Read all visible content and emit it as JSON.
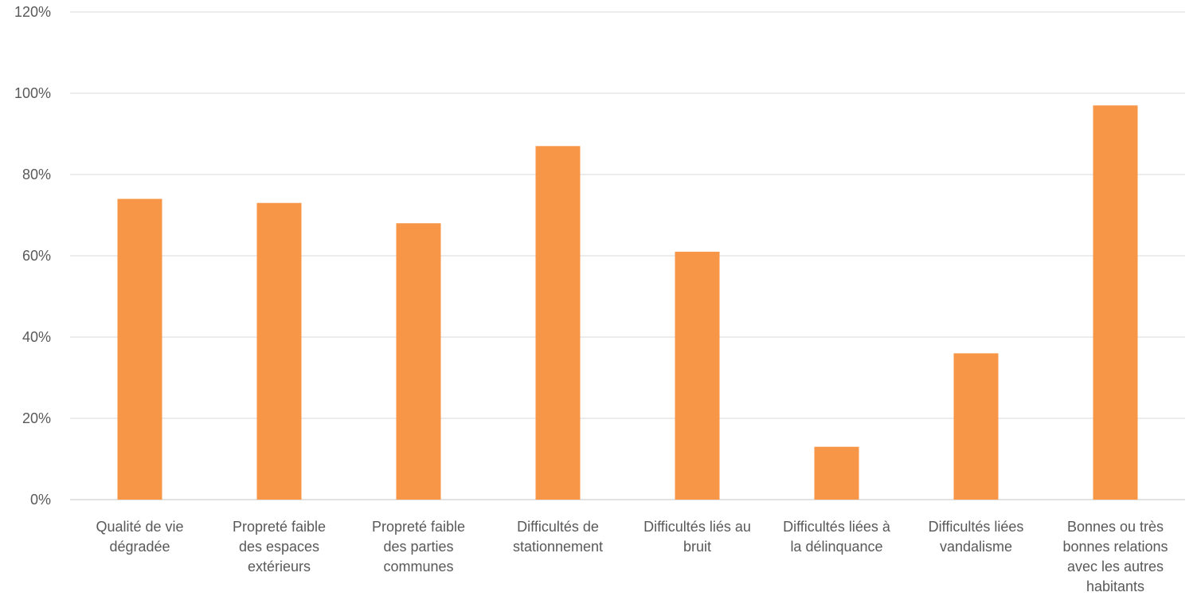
{
  "chart_data": {
    "type": "bar",
    "title": "",
    "xlabel": "",
    "ylabel": "",
    "ylim": [
      0,
      120
    ],
    "ytick_step": 20,
    "y_unit": "%",
    "grid": true,
    "legend": "none",
    "bar_color": "#F79646",
    "grid_color": "#D9D9D9",
    "categories": [
      [
        "Qualité de vie",
        "dégradée"
      ],
      [
        "Propreté faible",
        "des espaces",
        "extérieurs"
      ],
      [
        "Propreté faible",
        "des parties",
        "communes"
      ],
      [
        "Difficultés de",
        "stationnement"
      ],
      [
        "Difficultés liés au",
        "bruit"
      ],
      [
        "Difficultés liées à",
        "la délinquance"
      ],
      [
        "Difficultés liées",
        "vandalisme"
      ],
      [
        "Bonnes ou très",
        "bonnes relations",
        "avec les autres",
        "habitants"
      ]
    ],
    "values": [
      74,
      73,
      68,
      87,
      61,
      13,
      36,
      97
    ],
    "yticks": [
      "0%",
      "20%",
      "40%",
      "60%",
      "80%",
      "100%",
      "120%"
    ]
  }
}
